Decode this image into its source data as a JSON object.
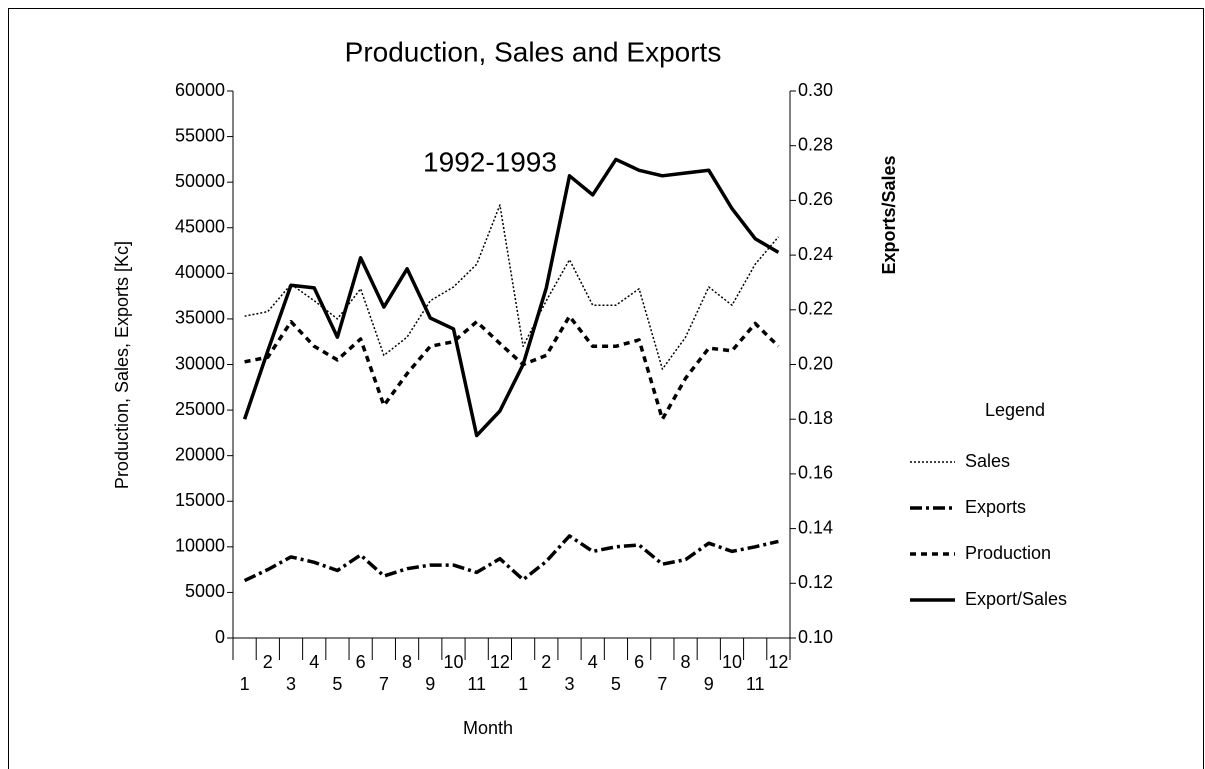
{
  "chart_data": {
    "type": "line",
    "title": "Production, Sales and Exports",
    "annotation": "1992-1993",
    "xlabel": "Month",
    "ylabel": "Production, Sales, Exports [Kc]",
    "y2label": "Exports/Sales",
    "legend_title": "Legend",
    "legend": "right",
    "categories": [
      "1",
      "2",
      "3",
      "4",
      "5",
      "6",
      "7",
      "8",
      "9",
      "10",
      "11",
      "12",
      "1",
      "2",
      "3",
      "4",
      "5",
      "6",
      "7",
      "8",
      "9",
      "10",
      "11",
      "12"
    ],
    "ylim": [
      0,
      60000
    ],
    "yticks": [
      0,
      5000,
      10000,
      15000,
      20000,
      25000,
      30000,
      35000,
      40000,
      45000,
      50000,
      55000,
      60000
    ],
    "y2lim": [
      0.1,
      0.3
    ],
    "y2ticks": [
      {
        "value": 0.1,
        "label": "0.10"
      },
      {
        "value": 0.12,
        "label": "0.12"
      },
      {
        "value": 0.14,
        "label": "0.14"
      },
      {
        "value": 0.16,
        "label": "0.16"
      },
      {
        "value": 0.18,
        "label": "0.18"
      },
      {
        "value": 0.2,
        "label": "0.20"
      },
      {
        "value": 0.22,
        "label": "0.22"
      },
      {
        "value": 0.24,
        "label": "0.24"
      },
      {
        "value": 0.26,
        "label": "0.26"
      },
      {
        "value": 0.28,
        "label": "0.28"
      },
      {
        "value": 0.3,
        "label": "0.30"
      }
    ],
    "series": [
      {
        "name": "Sales",
        "color": "#000000",
        "style": "dotted",
        "values": [
          35300,
          35800,
          38800,
          37000,
          35000,
          38300,
          31000,
          33000,
          37000,
          38500,
          41000,
          47500,
          32000,
          37000,
          41500,
          36500,
          36500,
          38300,
          29500,
          33000,
          38500,
          36500,
          41000,
          44000
        ]
      },
      {
        "name": "Exports",
        "color": "#000000",
        "style": "dashdot",
        "values": [
          6300,
          7500,
          8900,
          8300,
          7400,
          9100,
          6800,
          7600,
          8000,
          8000,
          7200,
          8700,
          6400,
          8400,
          11200,
          9500,
          10000,
          10200,
          8100,
          8600,
          10400,
          9500,
          10000,
          10600
        ]
      },
      {
        "name": "Production",
        "color": "#000000",
        "style": "dashed",
        "values": [
          30300,
          30800,
          34700,
          32000,
          30500,
          32800,
          25500,
          29000,
          32000,
          32500,
          34700,
          32300,
          30000,
          31000,
          35300,
          32000,
          32000,
          32700,
          24000,
          28500,
          31800,
          31500,
          34500,
          32000
        ]
      },
      {
        "name": "Export/Sales",
        "color": "#000000",
        "style": "solid",
        "axis": "y2",
        "values": [
          0.18,
          0.205,
          0.229,
          0.228,
          0.21,
          0.239,
          0.221,
          0.235,
          0.217,
          0.213,
          0.174,
          0.183,
          0.2,
          0.228,
          0.269,
          0.262,
          0.275,
          0.271,
          0.269,
          0.27,
          0.271,
          0.257,
          0.246,
          0.241
        ]
      }
    ]
  }
}
